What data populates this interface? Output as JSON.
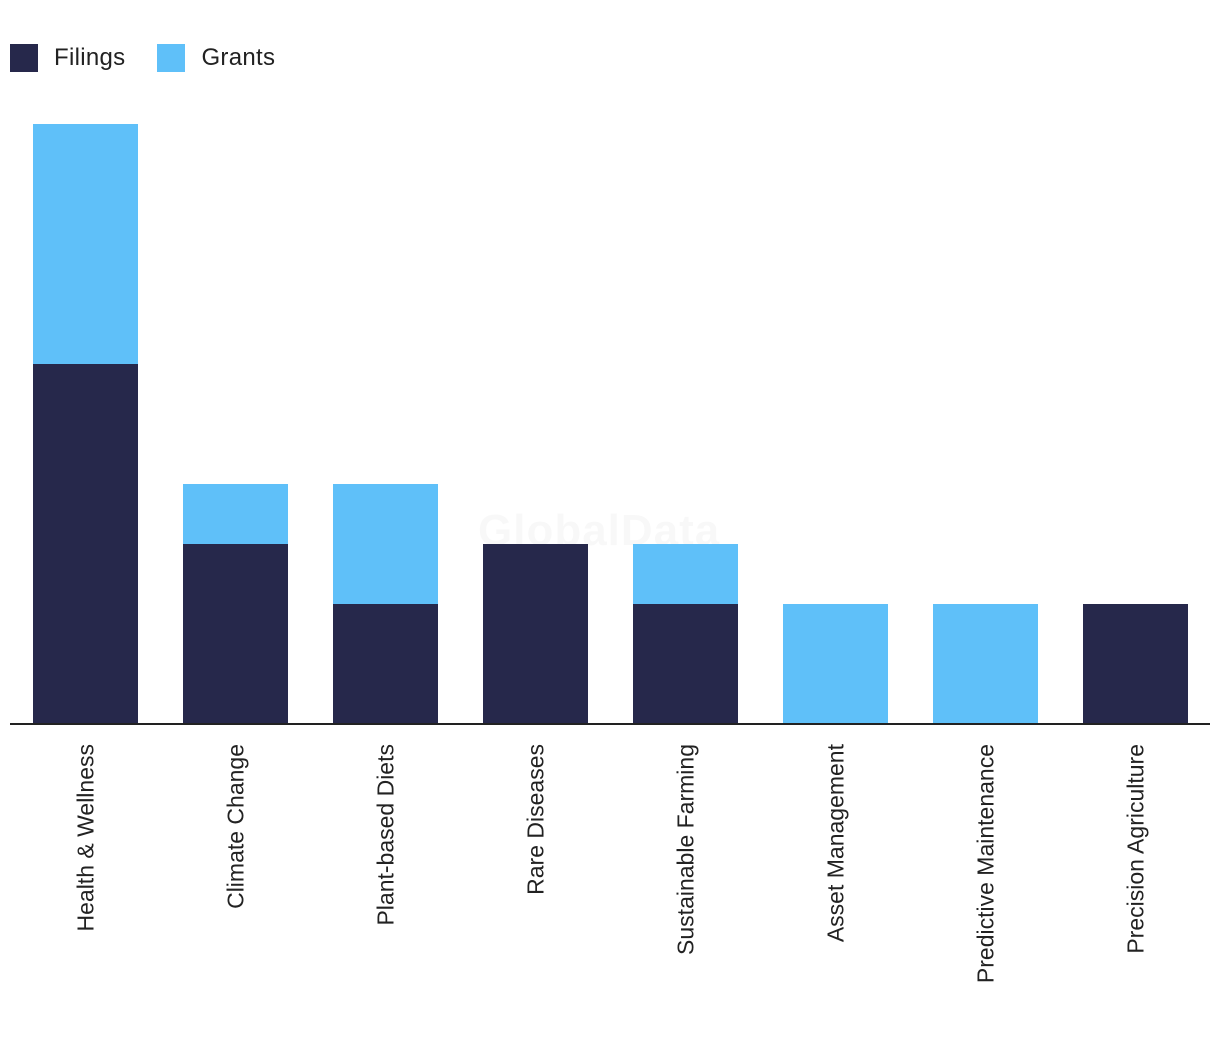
{
  "chart_data": {
    "type": "bar",
    "stacked": true,
    "categories": [
      "Health & Wellness",
      "Climate Change",
      "Plant-based Diets",
      "Rare Diseases",
      "Sustainable Farming",
      "Asset Management",
      "Predictive Maintenance",
      "Precision Agriculture"
    ],
    "series": [
      {
        "name": "Filings",
        "color": "#26284b",
        "values": [
          6,
          3,
          2,
          3,
          2,
          0,
          0,
          2
        ]
      },
      {
        "name": "Grants",
        "color": "#5fc0f9",
        "values": [
          4,
          1,
          2,
          0,
          1,
          2,
          2,
          0
        ]
      }
    ],
    "ylim": [
      0,
      10
    ],
    "legend_position": "top-left",
    "grid": false
  },
  "watermark": "GlobalData"
}
